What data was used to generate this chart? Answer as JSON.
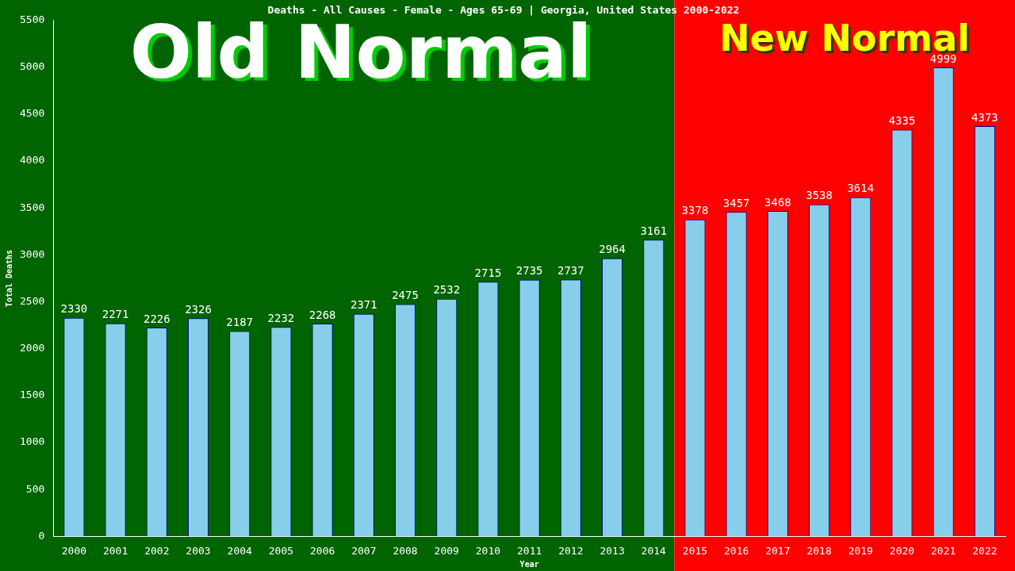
{
  "chart_data": {
    "type": "bar",
    "title": "Deaths - All Causes - Female - Ages 65-69 | Georgia, United States 2000-2022",
    "xlabel": "Year",
    "ylabel": "Total Deaths",
    "categories": [
      "2000",
      "2001",
      "2002",
      "2003",
      "2004",
      "2005",
      "2006",
      "2007",
      "2008",
      "2009",
      "2010",
      "2011",
      "2012",
      "2013",
      "2014",
      "2015",
      "2016",
      "2017",
      "2018",
      "2019",
      "2020",
      "2021",
      "2022"
    ],
    "values": [
      2330,
      2271,
      2226,
      2326,
      2187,
      2232,
      2268,
      2371,
      2475,
      2532,
      2715,
      2735,
      2737,
      2964,
      3161,
      3378,
      3457,
      3468,
      3538,
      3614,
      4335,
      4999,
      4373
    ],
    "color": "#87ceeb",
    "ylim": [
      0,
      5500
    ],
    "yticks": [
      0,
      500,
      1000,
      1500,
      2000,
      2500,
      3000,
      3500,
      4000,
      4500,
      5000,
      5500
    ],
    "grid": false,
    "data_labels": true,
    "bands": [
      {
        "axis": "x",
        "from": "2000",
        "to": "2014",
        "label": "Old Normal",
        "color": "#006400"
      },
      {
        "axis": "x",
        "from": "2015",
        "to": "2022",
        "label": "New Normal",
        "color": "#ff0000"
      }
    ]
  }
}
